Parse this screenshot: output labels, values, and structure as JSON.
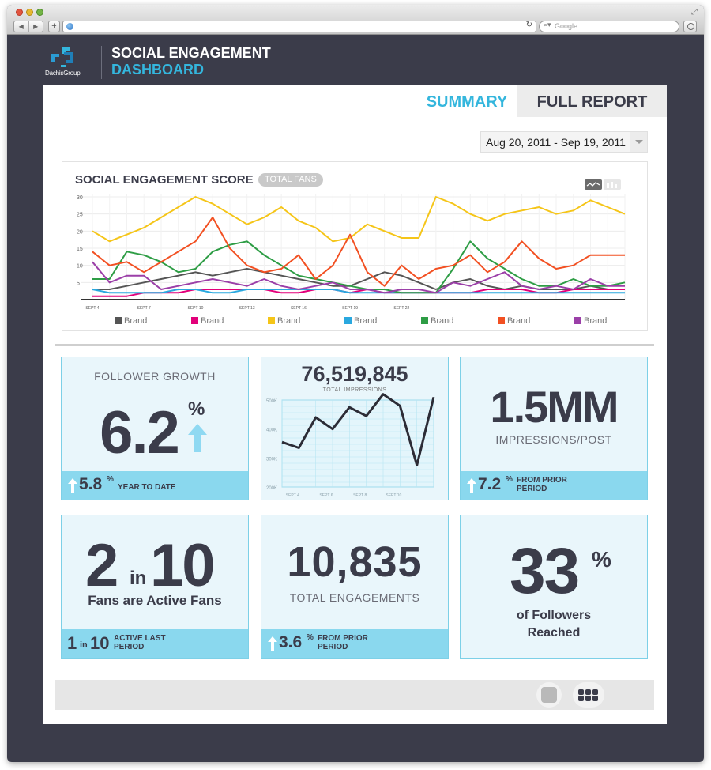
{
  "browser": {
    "search_placeholder": "Google"
  },
  "header": {
    "logo_text": "DachisGroup",
    "title_line1": "SOCIAL ENGAGEMENT",
    "title_line2": "DASHBOARD"
  },
  "tabs": {
    "summary": "SUMMARY",
    "full_report": "FULL REPORT"
  },
  "date_range": "Aug 20, 2011 - Sep 19, 2011",
  "chart_data": [
    {
      "type": "line",
      "title": "SOCIAL ENGAGEMENT SCORE",
      "badge": "TOTAL FANS",
      "ylim": [
        0,
        30
      ],
      "y_ticks": [
        "30",
        "25",
        "20",
        "15",
        "10",
        "5"
      ],
      "x_tick_labels": [
        "SEPT 4",
        "SEPT 7",
        "SEPT 10",
        "SEPT 13",
        "SEPT 16",
        "SEPT 19",
        "SEPT 22"
      ],
      "x_tick_positions": [
        0,
        3,
        6,
        9,
        12,
        15,
        18
      ],
      "grid": true,
      "legend_position": "bottom",
      "series": [
        {
          "name": "Brand",
          "color": "#555555",
          "values": [
            3,
            3,
            4,
            5,
            6,
            7,
            8,
            7,
            8,
            9,
            8,
            7,
            6,
            5,
            4,
            4,
            6,
            8,
            7,
            5,
            3,
            5,
            6,
            4,
            3,
            4,
            3,
            3,
            3,
            4,
            3,
            3
          ]
        },
        {
          "name": "Brand",
          "color": "#e2007a",
          "values": [
            1,
            1,
            1,
            2,
            2,
            2,
            3,
            3,
            3,
            3,
            3,
            2,
            2,
            3,
            3,
            2,
            3,
            2,
            2,
            2,
            2,
            2,
            2,
            3,
            3,
            3,
            2,
            2,
            3,
            3,
            3,
            3
          ]
        },
        {
          "name": "Brand",
          "color": "#f5c518",
          "values": [
            20,
            17,
            19,
            21,
            24,
            27,
            30,
            28,
            25,
            22,
            24,
            27,
            23,
            21,
            17,
            18,
            22,
            20,
            18,
            18,
            30,
            28,
            25,
            23,
            25,
            26,
            27,
            25,
            26,
            29,
            27,
            25
          ]
        },
        {
          "name": "Brand",
          "color": "#2aa8df",
          "values": [
            3,
            2,
            2,
            2,
            2,
            3,
            3,
            2,
            2,
            3,
            3,
            3,
            3,
            3,
            3,
            2,
            2,
            2,
            2,
            2,
            2,
            2,
            2,
            2,
            2,
            2,
            2,
            2,
            2,
            2,
            2,
            2
          ]
        },
        {
          "name": "Brand",
          "color": "#2e9d45",
          "values": [
            6,
            6,
            14,
            13,
            11,
            8,
            9,
            14,
            16,
            17,
            13,
            10,
            7,
            6,
            5,
            4,
            3,
            3,
            2,
            2,
            2,
            9,
            17,
            12,
            9,
            6,
            4,
            4,
            6,
            4,
            4,
            5
          ]
        },
        {
          "name": "Brand",
          "color": "#f25022",
          "values": [
            14,
            10,
            11,
            8,
            11,
            14,
            17,
            24,
            15,
            10,
            8,
            9,
            13,
            6,
            10,
            19,
            8,
            4,
            10,
            6,
            9,
            10,
            13,
            8,
            11,
            17,
            12,
            9,
            10,
            13,
            13,
            13
          ]
        },
        {
          "name": "Brand",
          "color": "#9b3fa8",
          "values": [
            11,
            5,
            7,
            7,
            3,
            4,
            5,
            6,
            5,
            4,
            6,
            4,
            3,
            4,
            5,
            3,
            3,
            2,
            3,
            3,
            2,
            5,
            4,
            6,
            8,
            4,
            3,
            4,
            3,
            6,
            4,
            4
          ]
        }
      ]
    },
    {
      "type": "line",
      "title": "76,519,845",
      "subtitle": "TOTAL IMPRESSIONS",
      "y_ticks": [
        "500K",
        "400K",
        "300K",
        "200K"
      ],
      "ylim": [
        200,
        500
      ],
      "x_tick_labels": [
        "SEPT 4",
        "SEPT 6",
        "SEPT 8",
        "SEPT 10"
      ],
      "x_tick_positions": [
        1,
        3,
        5,
        7
      ],
      "grid": true,
      "series": [
        {
          "name": "",
          "color": "#2c2c36",
          "values": [
            355,
            335,
            440,
            400,
            475,
            445,
            520,
            480,
            275,
            510
          ]
        }
      ]
    }
  ],
  "cards": {
    "follower_growth": {
      "label": "FOLLOWER GROWTH",
      "value": "6.2",
      "unit": "%",
      "foot_value": "5.8",
      "foot_unit": "%",
      "foot_label": "YEAR TO DATE"
    },
    "impressions_chart": {
      "value": "76,519,845",
      "label": "TOTAL IMPRESSIONS"
    },
    "impressions_post": {
      "value": "1.5MM",
      "label": "IMPRESSIONS/POST",
      "foot_value": "7.2",
      "foot_unit": "%",
      "foot_label_1": "FROM PRIOR",
      "foot_label_2": "PERIOD"
    },
    "active_fans": {
      "num_a": "2",
      "in": "in",
      "num_b": "10",
      "label": "Fans are Active Fans",
      "foot_a": "1",
      "foot_in": "in",
      "foot_b": "10",
      "foot_label_1": "ACTIVE LAST",
      "foot_label_2": "PERIOD"
    },
    "engagements": {
      "value": "10,835",
      "label": "TOTAL ENGAGEMENTS",
      "foot_value": "3.6",
      "foot_unit": "%",
      "foot_label_1": "FROM PRIOR",
      "foot_label_2": "PERIOD"
    },
    "reached": {
      "value": "33",
      "unit": "%",
      "label_1": "of Followers",
      "label_2": "Reached"
    }
  },
  "colors": {
    "accent": "#34b6dd",
    "dark": "#3b3c4a",
    "card_bg": "#e9f6fb",
    "card_foot": "#8ad8ee",
    "arrow": "#8fd9f2"
  }
}
